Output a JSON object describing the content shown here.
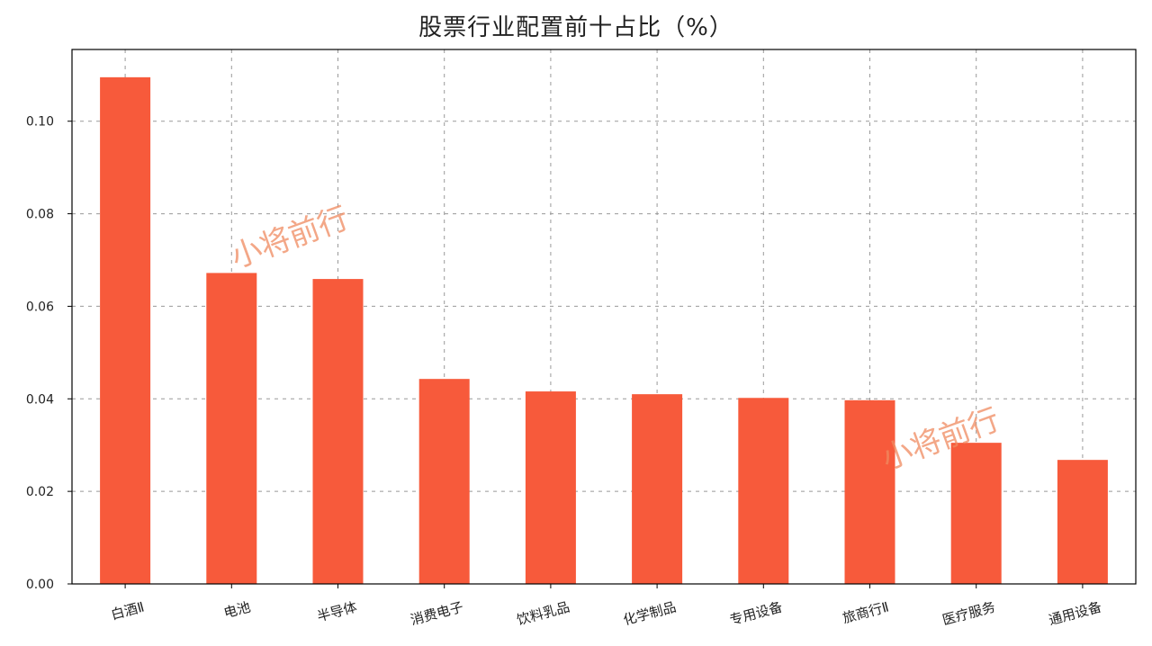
{
  "chart_data": {
    "type": "bar",
    "title": "股票行业配置前十占比（%）",
    "categories": [
      "白酒Ⅱ",
      "电池",
      "半导体",
      "消费电子",
      "饮料乳品",
      "化学制品",
      "专用设备",
      "旅商行Ⅱ",
      "医疗服务",
      "通用设备"
    ],
    "values": [
      0.1095,
      0.0672,
      0.0659,
      0.0443,
      0.0416,
      0.041,
      0.0402,
      0.0397,
      0.0305,
      0.0268
    ],
    "ylim": [
      0,
      0.1155
    ],
    "yticks": [
      "0.00",
      "0.02",
      "0.04",
      "0.06",
      "0.08",
      "0.10"
    ],
    "ytick_values": [
      0,
      0.02,
      0.04,
      0.06,
      0.08,
      0.1
    ],
    "xlabel": "",
    "ylabel": "",
    "grid": true,
    "bar_color": "#f75a3b"
  },
  "watermarks": [
    "小将前行",
    "小将前行"
  ]
}
